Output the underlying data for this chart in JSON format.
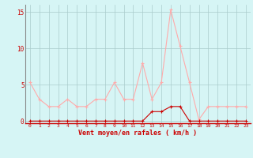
{
  "x": [
    0,
    1,
    2,
    3,
    4,
    5,
    6,
    7,
    8,
    9,
    10,
    11,
    12,
    13,
    14,
    15,
    16,
    17,
    18,
    19,
    20,
    21,
    22,
    23
  ],
  "y_rafales": [
    5.3,
    3.0,
    2.0,
    2.0,
    3.0,
    2.0,
    2.0,
    3.0,
    3.0,
    5.3,
    3.0,
    3.0,
    8.0,
    3.0,
    5.3,
    15.3,
    10.3,
    5.3,
    0.2,
    2.0,
    2.0,
    2.0,
    2.0,
    2.0
  ],
  "y_moyen": [
    0.0,
    0.0,
    0.0,
    0.0,
    0.0,
    0.0,
    0.0,
    0.0,
    0.0,
    0.0,
    0.0,
    0.0,
    0.0,
    1.3,
    1.3,
    2.0,
    2.0,
    0.0,
    0.0,
    0.0,
    0.0,
    0.0,
    0.0,
    0.0
  ],
  "color_rafales": "#ffaaaa",
  "color_moyen": "#cc0000",
  "bg_color": "#d6f5f5",
  "grid_color": "#aacccc",
  "label_color": "#cc0000",
  "xlabel": "Vent moyen/en rafales ( km/h )",
  "ylim": [
    -0.3,
    16.0
  ],
  "yticks": [
    0,
    5,
    10,
    15
  ],
  "xticks": [
    0,
    1,
    2,
    3,
    4,
    5,
    6,
    7,
    8,
    9,
    10,
    11,
    12,
    13,
    14,
    15,
    16,
    17,
    18,
    19,
    20,
    21,
    22,
    23
  ]
}
